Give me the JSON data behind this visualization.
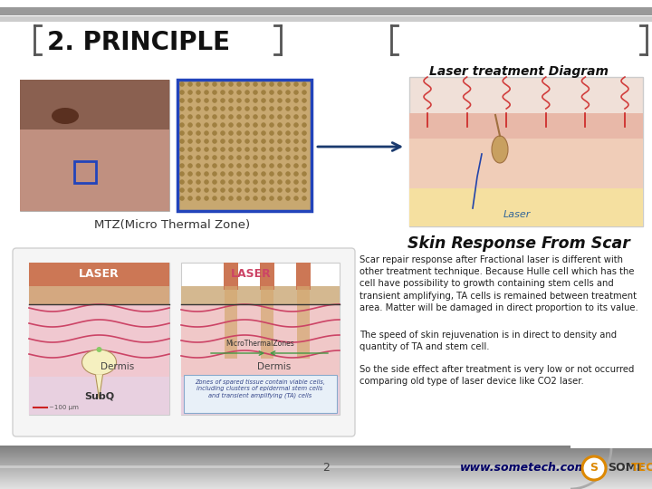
{
  "slide_bg": "#ffffff",
  "title": "2. PRINCIPLE",
  "title_color": "#111111",
  "title_fontsize": 20,
  "laser_diagram_label": "Laser treatment Diagram",
  "mtz_label": "MTZ(Micro Thermal Zone)",
  "skin_response_label": "Skin Response From Scar",
  "paragraph1": "Scar repair response after Fractional laser is different with\nother treatment technique. Because Hulle cell which has the\ncell have possibility to growth containing stem cells and\ntransient amplifying, TA cells is remained between treatment\narea. Matter will be damaged in direct proportion to its value.",
  "paragraph2": "The speed of skin rejuvenation is in direct to density and\nquantity of TA and stem cell.",
  "paragraph3": "So the side effect after treatment is very low or not occurred\ncomparing old type of laser device like CO2 laser.",
  "footer_number": "2",
  "footer_url": "www.sometech.com",
  "footer_brand_1": "SOME",
  "footer_brand_2": "TECH",
  "bracket_color": "#555555",
  "arrow_color": "#1a3a6e",
  "header_gray": "#c0c0c0",
  "header_light": "#e8e8e8"
}
